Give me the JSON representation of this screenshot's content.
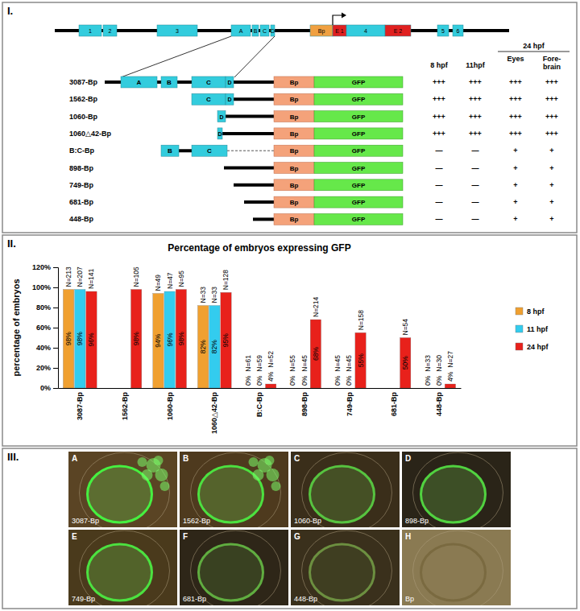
{
  "panels": [
    "I.",
    "II.",
    "III."
  ],
  "diagram": {
    "gene_map": [
      {
        "label": "1",
        "color": "#33ccdd"
      },
      {
        "label": "2",
        "color": "#33ccdd"
      },
      {
        "label": "3",
        "color": "#33ccdd"
      },
      {
        "label": "A",
        "color": "#33ccdd"
      },
      {
        "label": "B",
        "color": "#33ccdd"
      },
      {
        "label": "C",
        "color": "#33ccdd"
      },
      {
        "label": "D",
        "color": "#33ccdd"
      },
      {
        "label": "Bp",
        "color": "#f0a040"
      },
      {
        "label": "E 1",
        "color": "#e02020"
      },
      {
        "label": "4",
        "color": "#33ccdd"
      },
      {
        "label": "E 2",
        "color": "#e02020"
      },
      {
        "label": "5",
        "color": "#33ccdd"
      },
      {
        "label": "6",
        "color": "#33ccdd"
      }
    ],
    "column_group": "24 hpf",
    "columns": [
      "8 hpf",
      "11hpf",
      "Eyes",
      "Fore-brain"
    ],
    "constructs": [
      {
        "label": "3087-Bp",
        "elements": [
          "A",
          "B",
          "C",
          "D",
          "Bp",
          "GFP"
        ],
        "expression": [
          "+++",
          "+++",
          "+++",
          "+++"
        ]
      },
      {
        "label": "1562-Bp",
        "elements": [
          "C",
          "D",
          "Bp",
          "GFP"
        ],
        "expression": [
          "+++",
          "+++",
          "+++",
          "+++"
        ]
      },
      {
        "label": "1060-Bp",
        "elements": [
          "D",
          "Bp",
          "GFP"
        ],
        "expression": [
          "+++",
          "+++",
          "+++",
          "+++"
        ]
      },
      {
        "label": "1060△42-Bp",
        "elements": [
          "D",
          "Bp",
          "GFP"
        ],
        "expression": [
          "+++",
          "+++",
          "+++",
          "+++"
        ]
      },
      {
        "label": "B:C-Bp",
        "elements": [
          "B",
          "C",
          "Bp",
          "GFP"
        ],
        "expression": [
          "—",
          "—",
          "+",
          "+"
        ]
      },
      {
        "label": "898-Bp",
        "elements": [
          "Bp",
          "GFP"
        ],
        "expression": [
          "—",
          "—",
          "+",
          "+"
        ]
      },
      {
        "label": "749-Bp",
        "elements": [
          "Bp",
          "GFP"
        ],
        "expression": [
          "—",
          "—",
          "+",
          "+"
        ]
      },
      {
        "label": "681-Bp",
        "elements": [
          "Bp",
          "GFP"
        ],
        "expression": [
          "—",
          "—",
          "+",
          "+"
        ]
      },
      {
        "label": "448-Bp",
        "elements": [
          "Bp",
          "GFP"
        ],
        "expression": [
          "—",
          "—",
          "+",
          "+"
        ]
      }
    ]
  },
  "chart_data": {
    "type": "bar",
    "title": "Percentage of embryos expressing GFP",
    "y_label": "percentage of embryos",
    "categories": [
      "3087-Bp",
      "1562-Bp",
      "1060-Bp",
      "1060△42-Bp",
      "B:C-Bp",
      "898-Bp",
      "749-Bp",
      "681-Bp",
      "448-Bp"
    ],
    "series": [
      {
        "name": "8 hpf",
        "color": "#f0a030",
        "values": [
          98,
          null,
          94,
          82,
          0,
          0,
          0,
          null,
          0
        ],
        "value_labels": [
          "98%",
          null,
          "94%",
          "82%",
          "0%",
          "0%",
          "0%",
          null,
          "0%"
        ],
        "n_labels": [
          "N=213",
          null,
          "N=49",
          "N=33",
          "N=61",
          "N=55",
          "N=45",
          null,
          "N=33"
        ]
      },
      {
        "name": "11 hpf",
        "color": "#33ccee",
        "values": [
          98,
          null,
          96,
          82,
          0,
          0,
          0,
          null,
          0
        ],
        "value_labels": [
          "98%",
          null,
          "96%",
          "82%",
          "0%",
          "0%",
          "0%",
          null,
          "0%"
        ],
        "n_labels": [
          "N=207",
          null,
          "N=47",
          "N=33",
          "N=59",
          "N=45",
          "N=45",
          null,
          "N=30"
        ]
      },
      {
        "name": "24 hpf",
        "color": "#e8211b",
        "values": [
          96,
          98,
          98,
          95,
          4,
          68,
          55,
          50,
          4
        ],
        "value_labels": [
          "96%",
          "98%",
          "98%",
          "95%",
          "4%",
          "68%",
          "55%",
          "50%",
          "4%"
        ],
        "n_labels": [
          "N=141",
          "N=105",
          "N=95",
          "N=128",
          "N=52",
          "N=214",
          "N=158",
          "N=54",
          "N=27"
        ]
      }
    ],
    "ylim": [
      0,
      120
    ],
    "yticks": [
      {
        "value": 0,
        "label": "0%"
      },
      {
        "value": 20,
        "label": "20%"
      },
      {
        "value": 40,
        "label": "40%"
      },
      {
        "value": 60,
        "label": "60%"
      },
      {
        "value": 80,
        "label": "80%"
      },
      {
        "value": 100,
        "label": "100%"
      },
      {
        "value": 120,
        "label": "120%"
      }
    ],
    "grid": false,
    "legend": "right",
    "data_labels": true
  },
  "images": [
    {
      "letter": "A",
      "label": "3087-Bp"
    },
    {
      "letter": "B",
      "label": "1562-Bp"
    },
    {
      "letter": "C",
      "label": "1060-Bp"
    },
    {
      "letter": "D",
      "label": "898-Bp"
    },
    {
      "letter": "E",
      "label": "749-Bp"
    },
    {
      "letter": "F",
      "label": "681-Bp"
    },
    {
      "letter": "G",
      "label": "448-Bp"
    },
    {
      "letter": "H",
      "label": "Bp"
    }
  ]
}
